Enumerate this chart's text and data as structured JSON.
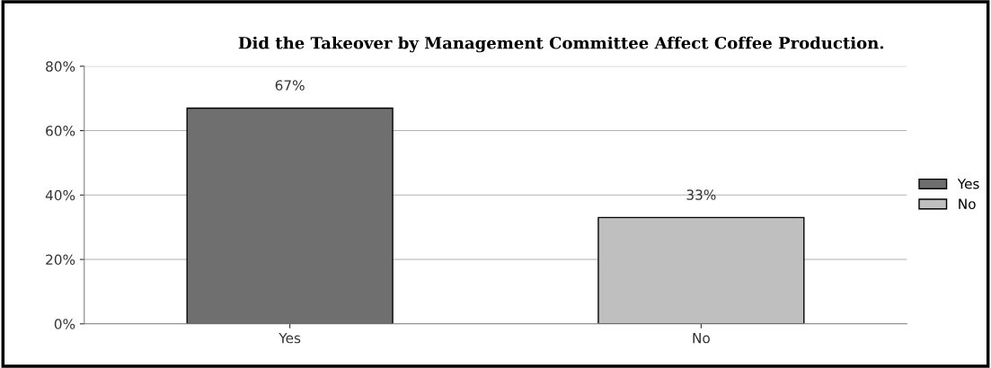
{
  "chart_data": {
    "type": "bar",
    "title": "Did the Takeover by Management Committee Affect Coffee Production.",
    "categories": [
      "Yes",
      "No"
    ],
    "series": [
      {
        "name": "Yes",
        "color": "#6f6f6f",
        "values": [
          67,
          null
        ],
        "value_labels": [
          "67%",
          null
        ]
      },
      {
        "name": "No",
        "color": "#bfbfbf",
        "values": [
          null,
          33
        ],
        "value_labels": [
          null,
          "33%"
        ]
      }
    ],
    "ylim": [
      0,
      80
    ],
    "yticks": [
      {
        "value": 0,
        "label": "0%"
      },
      {
        "value": 20,
        "label": "20%"
      },
      {
        "value": 40,
        "label": "40%"
      },
      {
        "value": 60,
        "label": "60%"
      },
      {
        "value": 80,
        "label": "80%"
      }
    ],
    "grid": "y",
    "legend": "right"
  }
}
